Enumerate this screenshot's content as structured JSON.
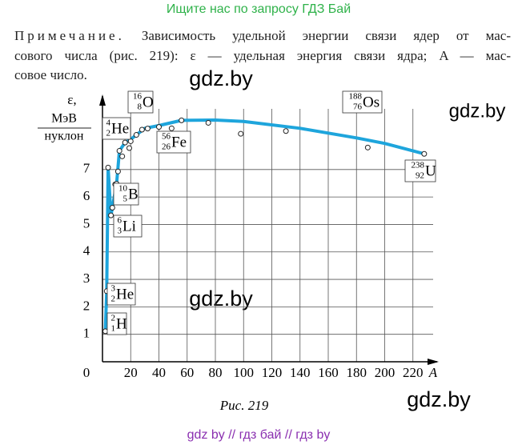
{
  "header": "Ищите нас по запросу ГДЗ Бай",
  "note": {
    "label": "Примечание.",
    "lines": [
      "Зависимость удельной энергии связи ядер от мас-",
      "сового числа (рис. 219): ε — удельная энергия связи ядра; A — мас-",
      "совое число."
    ]
  },
  "watermarks": [
    "gdz.by",
    "gdz.by",
    "gdz.by",
    "gdz.by"
  ],
  "chart_data": {
    "type": "scatter",
    "y_label": "ε,",
    "y_unit": {
      "numerator": "МэВ",
      "denominator": "нуклон"
    },
    "x_label": "A",
    "xlim": [
      0,
      240
    ],
    "ylim": [
      0,
      9.5
    ],
    "xticks": [
      0,
      20,
      40,
      60,
      80,
      100,
      120,
      140,
      160,
      180,
      200,
      220
    ],
    "yticks": [
      1,
      2,
      3,
      4,
      5,
      6,
      7
    ],
    "grid": true,
    "points": {
      "color": "#ffffff",
      "x": [
        2,
        3,
        4,
        6,
        7,
        9,
        10,
        11,
        12,
        14,
        16,
        19,
        20,
        24,
        28,
        32,
        40,
        49,
        56,
        75,
        98,
        130,
        188,
        228
      ],
      "y": [
        1.11,
        2.57,
        7.07,
        5.33,
        5.61,
        6.46,
        6.48,
        6.93,
        7.68,
        7.48,
        7.98,
        7.78,
        8.03,
        8.26,
        8.45,
        8.49,
        8.55,
        8.5,
        8.79,
        8.7,
        8.3,
        8.4,
        7.8,
        7.57
      ]
    },
    "curve": {
      "color": "#1ea5dc",
      "x": [
        2,
        3,
        4,
        6,
        7,
        10,
        12,
        16,
        20,
        30,
        40,
        56,
        80,
        100,
        140,
        180,
        200,
        228
      ],
      "y": [
        1.11,
        2.57,
        7.07,
        5.33,
        5.61,
        6.48,
        7.68,
        7.98,
        8.1,
        8.5,
        8.6,
        8.79,
        8.8,
        8.75,
        8.5,
        8.15,
        7.95,
        7.57
      ]
    },
    "annotations": [
      {
        "mass": "2",
        "charge": "1",
        "symbol": "H"
      },
      {
        "mass": "3",
        "charge": "2",
        "symbol": "He"
      },
      {
        "mass": "6",
        "charge": "3",
        "symbol": "Li"
      },
      {
        "mass": "10",
        "charge": "5",
        "symbol": "B"
      },
      {
        "mass": "4",
        "charge": "2",
        "symbol": "He"
      },
      {
        "mass": "16",
        "charge": "8",
        "symbol": "O"
      },
      {
        "mass": "56",
        "charge": "26",
        "symbol": "Fe"
      },
      {
        "mass": "188",
        "charge": "76",
        "symbol": "Os"
      },
      {
        "mass": "238",
        "charge": "92",
        "symbol": "U"
      }
    ]
  },
  "caption": "Рис. 219",
  "footer": "gdz by  //  гдз бай  //  гдз by"
}
